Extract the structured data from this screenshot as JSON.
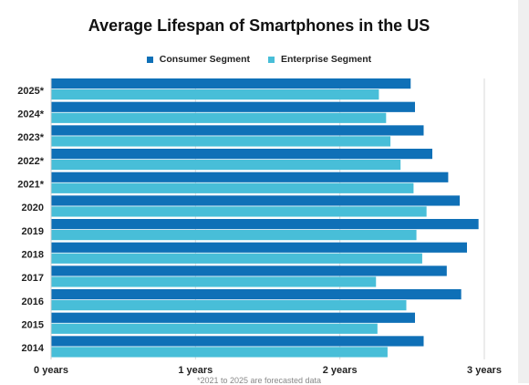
{
  "chart_data": {
    "type": "bar",
    "orientation": "horizontal",
    "title": "Average Lifespan of Smartphones in the US",
    "categories": [
      "2025*",
      "2024*",
      "2023*",
      "2022*",
      "2021*",
      "2020",
      "2019",
      "2018",
      "2017",
      "2016",
      "2015",
      "2014"
    ],
    "series": [
      {
        "name": "Consumer Segment",
        "color": "#0f70b7",
        "values": [
          2.49,
          2.52,
          2.58,
          2.64,
          2.75,
          2.83,
          2.96,
          2.88,
          2.74,
          2.84,
          2.52,
          2.58
        ]
      },
      {
        "name": "Enterprise Segment",
        "color": "#48bed8",
        "values": [
          2.27,
          2.32,
          2.35,
          2.42,
          2.51,
          2.6,
          2.53,
          2.57,
          2.25,
          2.46,
          2.26,
          2.33
        ]
      }
    ],
    "xlim": [
      0,
      3
    ],
    "x_tick_values": [
      0,
      1,
      2,
      3
    ],
    "x_tick_labels": [
      "0 years",
      "1 years",
      "2 years",
      "3 years"
    ],
    "grid": true,
    "legend_position": "top-center",
    "footnote": "*2021 to 2025 are forecasted data"
  }
}
